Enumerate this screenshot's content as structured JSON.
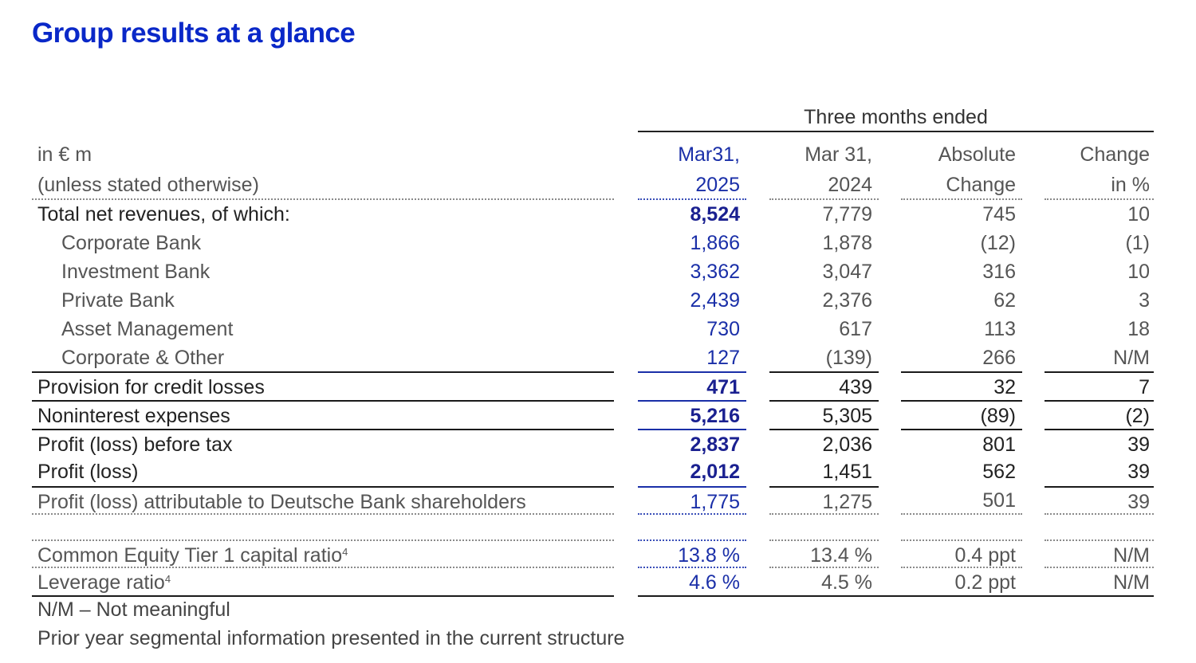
{
  "title": "Group results at a glance",
  "period_header": "Three months ended",
  "header": {
    "label_line1": "in € m",
    "label_line2": "(unless stated otherwise)",
    "col1_line1": "Mar31,",
    "col1_line2": "2025",
    "col2_line1": "Mar 31,",
    "col2_line2": "2024",
    "col3_line1": "Absolute",
    "col3_line2": "Change",
    "col4_line1": "Change",
    "col4_line2": "in %"
  },
  "rows": [
    {
      "label": "Total net revenues, of which:",
      "v1": "8,524",
      "v2": "7,779",
      "v3": "745",
      "v4": "10"
    },
    {
      "label": "Corporate Bank",
      "v1": "1,866",
      "v2": "1,878",
      "v3": "(12)",
      "v4": "(1)"
    },
    {
      "label": "Investment Bank",
      "v1": "3,362",
      "v2": "3,047",
      "v3": "316",
      "v4": "10"
    },
    {
      "label": "Private Bank",
      "v1": "2,439",
      "v2": "2,376",
      "v3": "62",
      "v4": "3"
    },
    {
      "label": "Asset Management",
      "v1": "730",
      "v2": "617",
      "v3": "113",
      "v4": "18"
    },
    {
      "label": "Corporate & Other",
      "v1": "127",
      "v2": "(139)",
      "v3": "266",
      "v4": "N/M"
    },
    {
      "label": "Provision for credit losses",
      "v1": "471",
      "v2": "439",
      "v3": "32",
      "v4": "7"
    },
    {
      "label": "Noninterest expenses",
      "v1": "5,216",
      "v2": "5,305",
      "v3": "(89)",
      "v4": "(2)"
    },
    {
      "label": "Profit (loss) before tax",
      "v1": "2,837",
      "v2": "2,036",
      "v3": "801",
      "v4": "39"
    },
    {
      "label": "Profit (loss)",
      "v1": "2,012",
      "v2": "1,451",
      "v3": "562",
      "v4": "39"
    },
    {
      "label": "Profit (loss) attributable to Deutsche Bank shareholders",
      "v1": "1,775",
      "v2": "1,275",
      "v3": "501",
      "v4": "39"
    },
    {
      "label": "Common Equity Tier 1 capital ratio",
      "sup": "4",
      "v1": "13.8 %",
      "v2": "13.4 %",
      "v3": "0.4  ppt",
      "v4": "N/M"
    },
    {
      "label": "Leverage ratio",
      "sup": "4",
      "v1": "4.6 %",
      "v2": "4.5 %",
      "v3": "0.2  ppt",
      "v4": "N/M"
    }
  ],
  "notes": [
    "N/M – Not meaningful",
    "Prior year segmental information presented in the current structure"
  ]
}
